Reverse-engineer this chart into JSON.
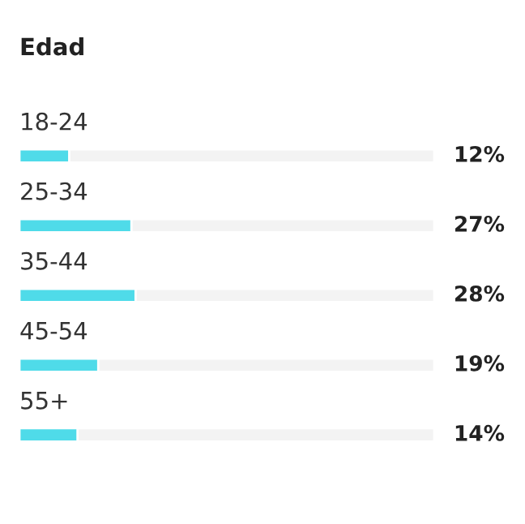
{
  "chart_data": {
    "type": "bar",
    "orientation": "horizontal",
    "title": "Edad",
    "categories": [
      "18-24",
      "25-34",
      "35-44",
      "45-54",
      "55+"
    ],
    "values": [
      12,
      27,
      28,
      19,
      14
    ],
    "value_labels": [
      "12%",
      "27%",
      "28%",
      "19%",
      "14%"
    ],
    "color": "#4fdbe9",
    "xlim": [
      0,
      100
    ]
  }
}
